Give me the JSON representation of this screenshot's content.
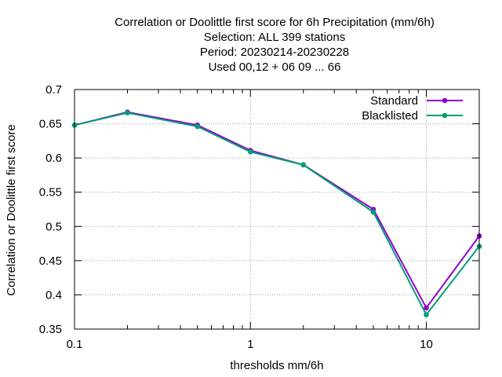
{
  "chart_data": {
    "type": "line",
    "title_lines": [
      "Correlation or Doolittle first score  for 6h Precipitation (mm/6h)",
      "Selection: ALL    399 stations",
      "Period: 20230214-20230228",
      "Used  00,12 + 06 09 ... 66"
    ],
    "xlabel": "thresholds mm/6h",
    "ylabel": "Correlation or Doolittle first score",
    "x_scale": "log",
    "xlim": [
      0.1,
      20
    ],
    "ylim": [
      0.35,
      0.7
    ],
    "x_ticks": [
      {
        "value": 0.1,
        "label": "0.1"
      },
      {
        "value": 1,
        "label": "1"
      },
      {
        "value": 10,
        "label": "10"
      }
    ],
    "y_ticks": [
      {
        "value": 0.35,
        "label": "0.35"
      },
      {
        "value": 0.4,
        "label": "0.4"
      },
      {
        "value": 0.45,
        "label": "0.45"
      },
      {
        "value": 0.5,
        "label": "0.5"
      },
      {
        "value": 0.55,
        "label": "0.55"
      },
      {
        "value": 0.6,
        "label": "0.6"
      },
      {
        "value": 0.65,
        "label": "0.65"
      },
      {
        "value": 0.7,
        "label": "0.7"
      }
    ],
    "grid": true,
    "legend_position": "top-right",
    "x": [
      0.1,
      0.2,
      0.5,
      1,
      2,
      5,
      10,
      20
    ],
    "series": [
      {
        "name": "Standard",
        "color": "#9400d3",
        "values": [
          0.648,
          0.667,
          0.648,
          0.611,
          0.59,
          0.525,
          0.381,
          0.486
        ]
      },
      {
        "name": "Blacklisted",
        "color": "#009e73",
        "values": [
          0.648,
          0.666,
          0.646,
          0.609,
          0.59,
          0.521,
          0.371,
          0.471
        ]
      }
    ]
  }
}
